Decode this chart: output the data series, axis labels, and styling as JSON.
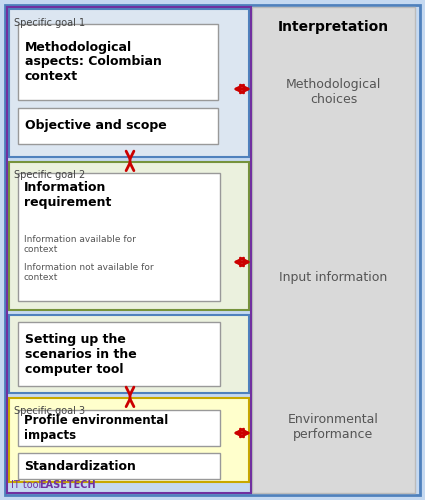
{
  "fig_width": 4.25,
  "fig_height": 5.0,
  "bg_outer": "#c5d9f1",
  "bg_right_panel": "#d9d9d9",
  "goal1_bg": "#dce6f1",
  "goal2_bg": "#ebf1de",
  "goal3_bg": "#ffffcc",
  "border_blue": "#4f81bd",
  "border_green": "#76933c",
  "border_yellow": "#c8a800",
  "border_gray": "#999999",
  "it_tool_color": "#7030a0",
  "red_arrow": "#cc0000",
  "title_right": "Interpretation",
  "label1": "Specific goal 1",
  "label2": "Specific goal 2",
  "label3": "Specific goal 3",
  "box1a_text": "Methodological\naspects: Colombian\ncontext",
  "box1b_text": "Objective and scope",
  "box2a_title": "Information\nrequirement",
  "box2a_sub1": "Information available for\ncontext",
  "box2a_sub2": "Information not available for\ncontext",
  "box2b_text": "Setting up the\nscenarios in the\ncomputer tool",
  "box3a_text": "Profile environmental\nimpacts",
  "box3b_text": "Standardization",
  "right_label1": "Methodological\nchoices",
  "right_label2": "Input information",
  "right_label3": "Environmental\nperformance",
  "footer_plain": "IT tool: ",
  "footer_bold": "EASETECH"
}
